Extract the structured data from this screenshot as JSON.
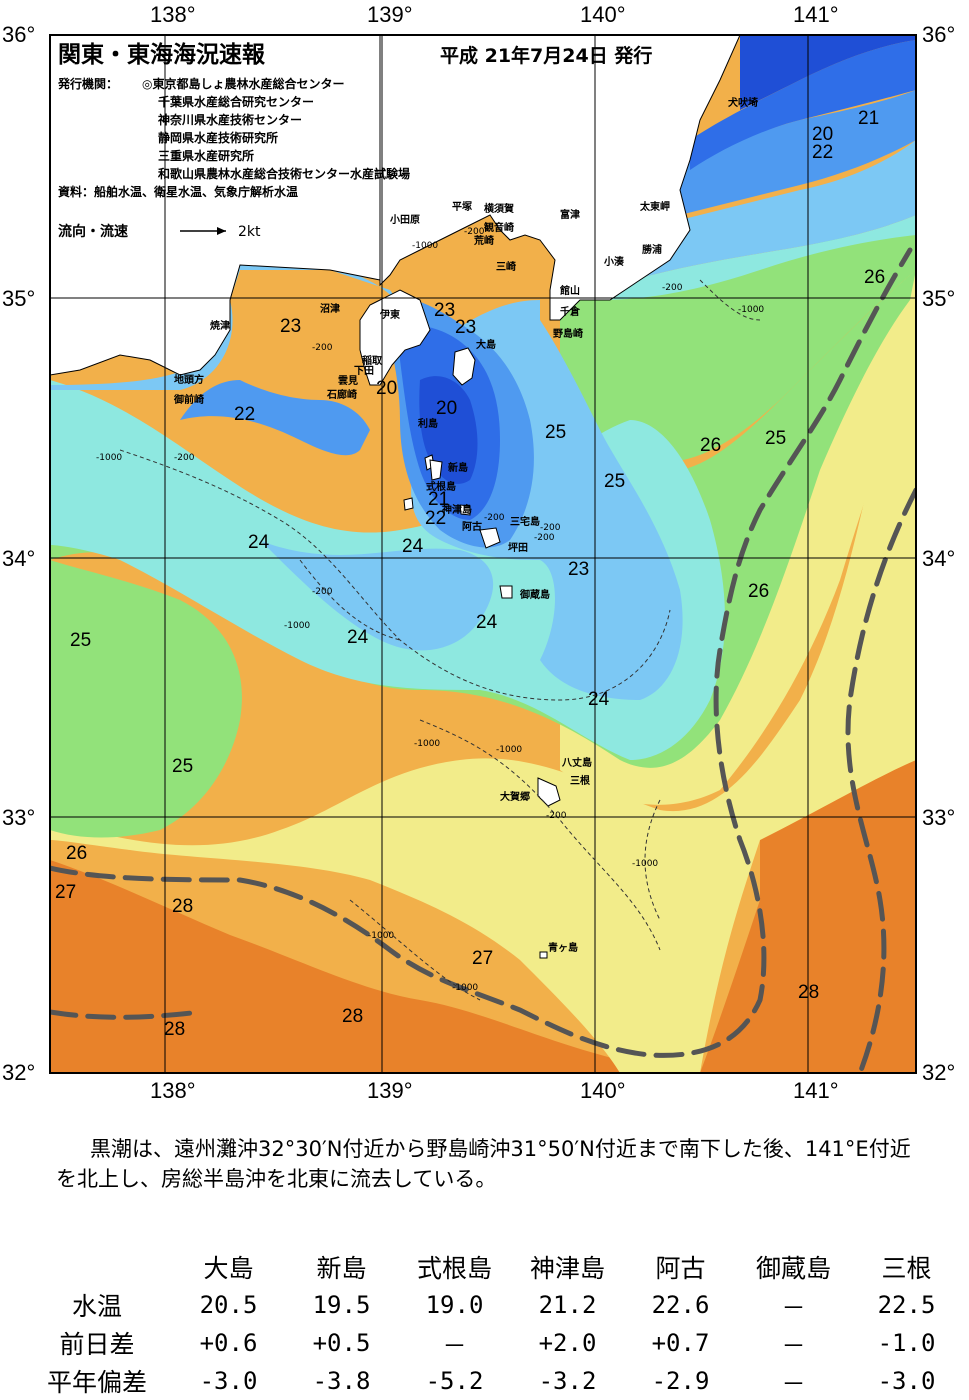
{
  "title": "関東・東海海況速報",
  "issue_date": "平成 21年7月24日 発行",
  "issuers_label": "発行機関：",
  "issuers": [
    "◎東京都島しょ農林水産総合センター",
    "千葉県水産総合研究センター",
    "神奈川県水産技術センター",
    "静岡県水産技術研究所",
    "三重県水産研究所",
    "和歌山県農林水産総合技術センター水産試験場"
  ],
  "sources": "資料：船舶水温、衛星水温、気象庁解析水温",
  "current_legend": {
    "label": "流向・流速",
    "scale": "2kt"
  },
  "lon_ticks": [
    "138°",
    "139°",
    "140°",
    "141°"
  ],
  "lat_ticks": [
    "36°",
    "35°",
    "34°",
    "33°",
    "32°"
  ],
  "colors": {
    "t20": "#1f4fd6",
    "t21": "#2f6ee8",
    "t22": "#4f9af0",
    "t23": "#7cc8f4",
    "t24": "#8ee8e0",
    "t25": "#92e27a",
    "t26": "#f2ec8a",
    "t27": "#f2b04a",
    "t28": "#e8822a",
    "land": "#ffffff",
    "kuroshio": "#555555"
  },
  "place_names": [
    "犬吠埼",
    "太東岬",
    "勝浦",
    "小湊",
    "富津",
    "横須賀",
    "平塚",
    "小田原",
    "観音崎",
    "荒崎",
    "三崎",
    "館山",
    "千倉",
    "野島崎",
    "大島",
    "沼津",
    "伊東",
    "焼津",
    "稲取",
    "下田",
    "雲見",
    "石廊崎",
    "地頭方",
    "御前崎",
    "利島",
    "新島",
    "式根島",
    "神津島",
    "阿古",
    "三宅島",
    "坪田",
    "御蔵島",
    "八丈島",
    "三根",
    "大賀郷",
    "青ヶ島"
  ],
  "isotherm_labels": [
    "20",
    "20",
    "20",
    "21",
    "21",
    "22",
    "22",
    "22",
    "23",
    "23",
    "23",
    "23",
    "24",
    "24",
    "24",
    "24",
    "24",
    "25",
    "25",
    "25",
    "25",
    "25",
    "26",
    "26",
    "26",
    "26",
    "27",
    "27",
    "28",
    "28",
    "28",
    "28"
  ],
  "depth_labels": [
    "-1000",
    "-1000",
    "-1000",
    "-1000",
    "-1000",
    "-1000",
    "-1000",
    "-1000",
    "-1000",
    "-200",
    "-200",
    "-200",
    "-200",
    "-200",
    "-200",
    "-200",
    "-200",
    "-200"
  ],
  "summary": "黒潮は、遠州灘沖32°30′N付近から野島崎沖31°50′N付近まで南下した後、141°E付近を北上し、房総半島沖を北東に流去している。",
  "table": {
    "stations": [
      "大島",
      "新島",
      "式根島",
      "神津島",
      "阿古",
      "御蔵島",
      "三根"
    ],
    "rows": [
      {
        "label": "水温",
        "values": [
          "20.5",
          "19.5",
          "19.0",
          "21.2",
          "22.6",
          "－",
          "22.5"
        ]
      },
      {
        "label": "前日差",
        "values": [
          "+0.6",
          "+0.5",
          "－",
          "+2.0",
          "+0.7",
          "－",
          "-1.0"
        ]
      },
      {
        "label": "平年偏差",
        "values": [
          "-3.0",
          "-3.8",
          "-5.2",
          "-3.2",
          "-2.9",
          "－",
          "-3.0"
        ]
      }
    ]
  }
}
